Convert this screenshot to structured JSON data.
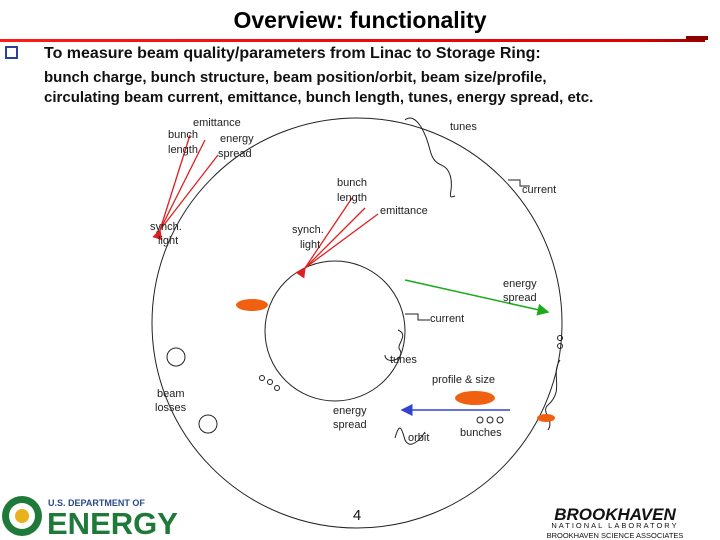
{
  "header": {
    "title": "Overview: functionality"
  },
  "bullet": {
    "text": "To measure beam quality/parameters from Linac to Storage Ring:",
    "detail": [
      "bunch charge, bunch structure, beam position/orbit, beam size/profile,",
      "circulating beam current, emittance, bunch length, tunes, energy spread, etc."
    ]
  },
  "diagram": {
    "outer": {
      "emittance": "emittance",
      "bunch_length": [
        "bunch",
        "length"
      ],
      "energy_spread": [
        "energy",
        "spread"
      ],
      "synch_light": [
        "synch.",
        "light"
      ],
      "tunes": "tunes",
      "current": "current",
      "beam_losses": [
        "beam",
        "losses"
      ]
    },
    "inner": {
      "bunch_length": [
        "bunch",
        "length"
      ],
      "emittance": "emittance",
      "synch_light": [
        "synch.",
        "light"
      ],
      "energy_spread_out": [
        "energy",
        "spread"
      ],
      "current": "current",
      "tunes": "tunes",
      "profile": "profile & size",
      "energy_spread_in": [
        "energy",
        "spread"
      ],
      "orbit": "orbit",
      "bunches": "bunches"
    }
  },
  "footer": {
    "doe_top": "U.S. DEPARTMENT OF",
    "doe_main": "ENERGY",
    "page": "4",
    "bnl_main": "BROOKHAVEN",
    "bnl_sub": "NATIONAL LABORATORY",
    "bnl_assoc": "BROOKHAVEN SCIENCE ASSOCIATES"
  }
}
